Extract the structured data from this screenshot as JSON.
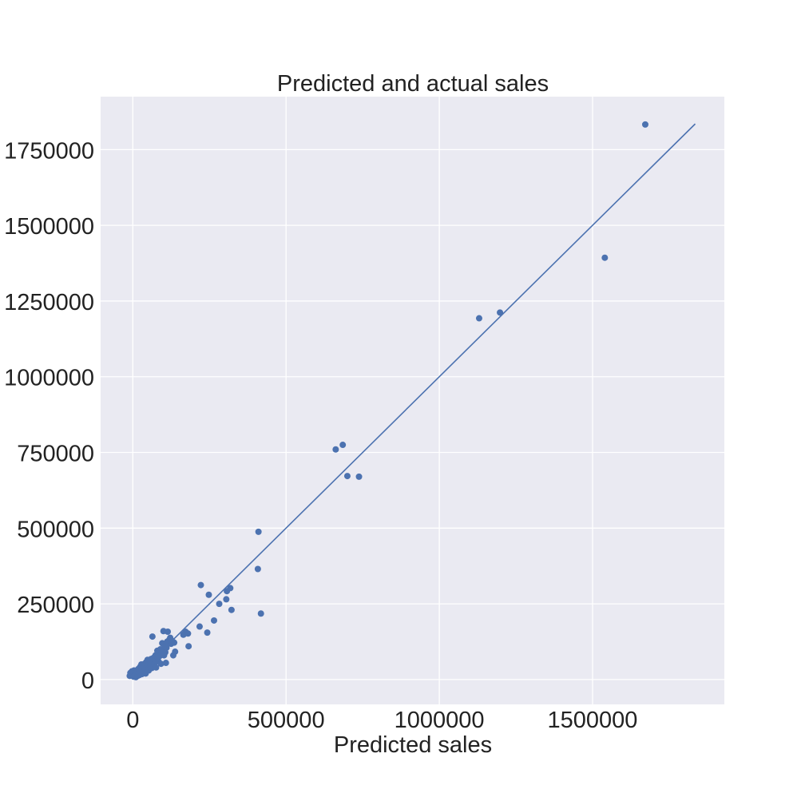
{
  "chart_data": {
    "type": "scatter",
    "title": "Predicted and actual sales",
    "xlabel": "Predicted sales",
    "ylabel": "",
    "xlim": [
      -105000,
      1930000
    ],
    "ylim": [
      -82000,
      1925000
    ],
    "xticks": [
      0,
      500000,
      1000000,
      1500000
    ],
    "yticks": [
      0,
      250000,
      500000,
      750000,
      1000000,
      1250000,
      1500000,
      1750000
    ],
    "xtick_labels": [
      "0",
      "500000",
      "1000000",
      "1500000"
    ],
    "ytick_labels": [
      "0",
      "250000",
      "500000",
      "750000",
      "1000000",
      "1250000",
      "1500000",
      "1750000"
    ],
    "grid": true,
    "background_color": "#eaeaf2",
    "point_color": "#4c72b0",
    "line_color": "#4c72b0",
    "reference_line": {
      "x": [
        0,
        1835000
      ],
      "y": [
        0,
        1835000
      ]
    },
    "points": [
      [
        -10000,
        12000
      ],
      [
        -8000,
        22000
      ],
      [
        -5000,
        17000
      ],
      [
        -3000,
        27000
      ],
      [
        0,
        20000
      ],
      [
        2000,
        10000
      ],
      [
        4000,
        30000
      ],
      [
        6000,
        14000
      ],
      [
        8000,
        22000
      ],
      [
        10000,
        8000
      ],
      [
        12000,
        18000
      ],
      [
        14000,
        26000
      ],
      [
        16000,
        12000
      ],
      [
        18000,
        35000
      ],
      [
        20000,
        22000
      ],
      [
        22000,
        15000
      ],
      [
        24000,
        42000
      ],
      [
        26000,
        28000
      ],
      [
        28000,
        50000
      ],
      [
        30000,
        18000
      ],
      [
        32000,
        38000
      ],
      [
        34000,
        25000
      ],
      [
        36000,
        45000
      ],
      [
        38000,
        52000
      ],
      [
        40000,
        32000
      ],
      [
        42000,
        20000
      ],
      [
        44000,
        58000
      ],
      [
        46000,
        40000
      ],
      [
        48000,
        65000
      ],
      [
        50000,
        48000
      ],
      [
        52000,
        30000
      ],
      [
        54000,
        55000
      ],
      [
        56000,
        62000
      ],
      [
        58000,
        45000
      ],
      [
        60000,
        68000
      ],
      [
        62000,
        38000
      ],
      [
        64000,
        142000
      ],
      [
        66000,
        58000
      ],
      [
        68000,
        72000
      ],
      [
        70000,
        52000
      ],
      [
        72000,
        65000
      ],
      [
        74000,
        80000
      ],
      [
        76000,
        40000
      ],
      [
        78000,
        62000
      ],
      [
        80000,
        95000
      ],
      [
        82000,
        72000
      ],
      [
        84000,
        60000
      ],
      [
        86000,
        88000
      ],
      [
        88000,
        78000
      ],
      [
        90000,
        100000
      ],
      [
        92000,
        52000
      ],
      [
        94000,
        85000
      ],
      [
        96000,
        120000
      ],
      [
        98000,
        95000
      ],
      [
        100000,
        160000
      ],
      [
        102000,
        80000
      ],
      [
        104000,
        110000
      ],
      [
        106000,
        90000
      ],
      [
        108000,
        55000
      ],
      [
        110000,
        105000
      ],
      [
        112000,
        125000
      ],
      [
        114000,
        158000
      ],
      [
        118000,
        130000
      ],
      [
        122000,
        138000
      ],
      [
        125000,
        118000
      ],
      [
        128000,
        128000
      ],
      [
        132000,
        80000
      ],
      [
        135000,
        122000
      ],
      [
        138000,
        92000
      ],
      [
        165000,
        148000
      ],
      [
        172000,
        158000
      ],
      [
        180000,
        152000
      ],
      [
        182000,
        110000
      ],
      [
        218000,
        175000
      ],
      [
        222000,
        312000
      ],
      [
        243000,
        155000
      ],
      [
        248000,
        280000
      ],
      [
        265000,
        195000
      ],
      [
        282000,
        250000
      ],
      [
        305000,
        265000
      ],
      [
        307000,
        292000
      ],
      [
        318000,
        302000
      ],
      [
        322000,
        230000
      ],
      [
        408000,
        365000
      ],
      [
        410000,
        488000
      ],
      [
        418000,
        218000
      ],
      [
        662000,
        760000
      ],
      [
        685000,
        775000
      ],
      [
        700000,
        672000
      ],
      [
        738000,
        670000
      ],
      [
        1130000,
        1193000
      ],
      [
        1198000,
        1212000
      ],
      [
        1540000,
        1393000
      ],
      [
        1672000,
        1833000
      ]
    ]
  }
}
